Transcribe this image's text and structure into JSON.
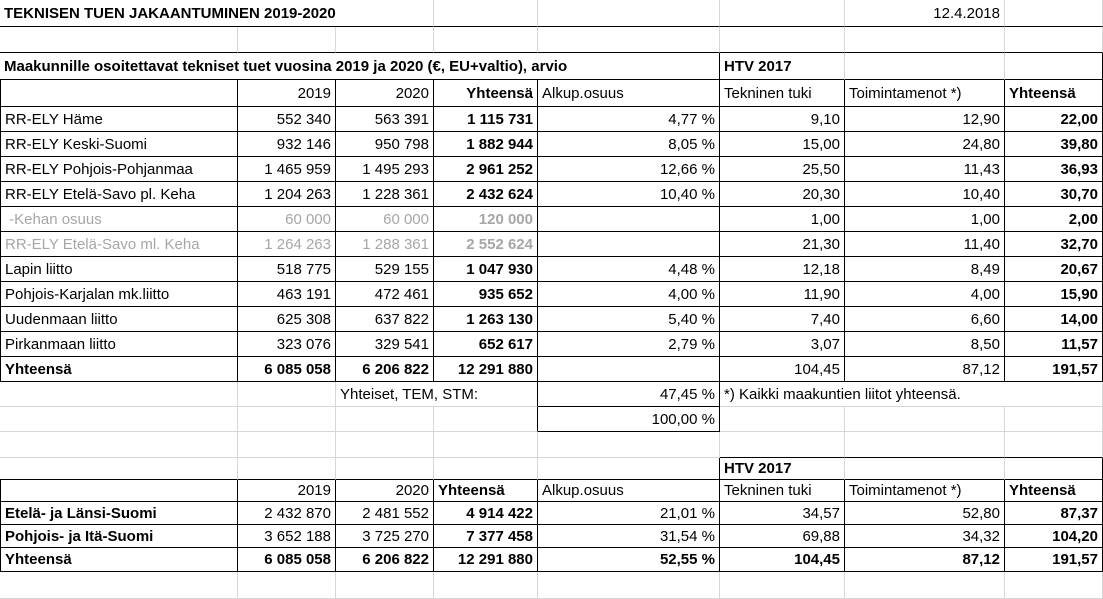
{
  "sheet": {
    "title": "TEKNISEN TUEN JAKAANTUMINEN 2019-2020",
    "date": "12.4.2018"
  },
  "t1": {
    "subtitle": "Maakunnille osoitettavat tekniset tuet vuosina 2019 ja 2020 (€, EU+valtio), arvio",
    "htv": "HTV 2017",
    "h": [
      "2019",
      "2020",
      "Yhteensä",
      "Alkup.osuus",
      "Tekninen tuki",
      "Toimintamenot *)",
      "Yhteensä"
    ],
    "rows": [
      [
        "RR-ELY Häme",
        "552 340",
        "563 391",
        "1 115 731",
        "4,77 %",
        "9,10",
        "12,90",
        "22,00"
      ],
      [
        "RR-ELY Keski-Suomi",
        "932 146",
        "950 798",
        "1 882 944",
        "8,05 %",
        "15,00",
        "24,80",
        "39,80"
      ],
      [
        "RR-ELY Pohjois-Pohjanmaa",
        "1 465 959",
        "1 495 293",
        "2 961 252",
        "12,66 %",
        "25,50",
        "11,43",
        "36,93"
      ],
      [
        "RR-ELY Etelä-Savo pl. Keha",
        "1 204 263",
        "1 228 361",
        "2 432 624",
        "10,40 %",
        "20,30",
        "10,40",
        "30,70"
      ],
      [
        " -Kehan osuus",
        "60 000",
        "60 000",
        "120 000",
        "",
        "1,00",
        "1,00",
        "2,00"
      ],
      [
        "RR-ELY Etelä-Savo ml. Keha",
        "1 264 263",
        "1 288 361",
        "2 552 624",
        "",
        "21,30",
        "11,40",
        "32,70"
      ],
      [
        "Lapin liitto",
        "518 775",
        "529 155",
        "1 047 930",
        "4,48 %",
        "12,18",
        "8,49",
        "20,67"
      ],
      [
        "Pohjois-Karjalan mk.liitto",
        "463 191",
        "472 461",
        "935 652",
        "4,00 %",
        "11,90",
        "4,00",
        "15,90"
      ],
      [
        "Uudenmaan liitto",
        "625 308",
        "637 822",
        "1 263 130",
        "5,40 %",
        "7,40",
        "6,60",
        "14,00"
      ],
      [
        "Pirkanmaan liitto",
        "323 076",
        "329 541",
        "652 617",
        "2,79 %",
        "3,07",
        "8,50",
        "11,57"
      ],
      [
        "Yhteensä",
        "6 085 058",
        "6 206 822",
        "12 291 880",
        "",
        "104,45",
        "87,12",
        "191,57"
      ]
    ],
    "tem_label": "Yhteiset, TEM, STM:",
    "tem_share": "47,45 %",
    "share_total": "100,00 %",
    "footnote": "*) Kaikki maakuntien liitot yhteensä."
  },
  "t2": {
    "htv": "HTV 2017",
    "h": [
      "2019",
      "2020",
      "Yhteensä",
      "Alkup.osuus",
      "Tekninen tuki",
      "Toimintamenot *)",
      "Yhteensä"
    ],
    "rows": [
      [
        "Etelä- ja Länsi-Suomi",
        "2 432 870",
        "2 481 552",
        "4 914 422",
        "21,01 %",
        "34,57",
        "52,80",
        "87,37"
      ],
      [
        "Pohjois- ja Itä-Suomi",
        "3 652 188",
        "3 725 270",
        "7 377 458",
        "31,54 %",
        "69,88",
        "34,32",
        "104,20"
      ],
      [
        "Yhteensä",
        "6 085 058",
        "6 206 822",
        "12 291 880",
        "52,55 %",
        "104,45",
        "87,12",
        "191,57"
      ]
    ]
  },
  "colors": {
    "background": "#ffffff",
    "gridline": "#d6d6d6",
    "table_border": "#000000",
    "muted_text": "#a6a6a6"
  }
}
